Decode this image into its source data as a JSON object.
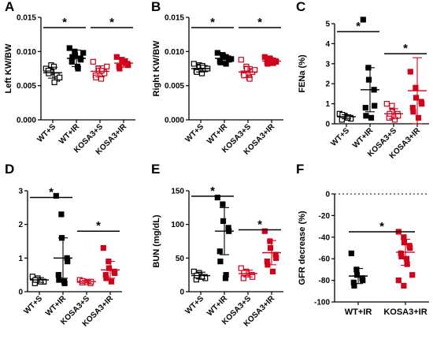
{
  "chart_data": [
    {
      "type": "dot",
      "panel": "A",
      "ylabel": "Left KW/BW",
      "categories": [
        "WT+S",
        "WT+IR",
        "KOSA3+S",
        "KOSA3+IR"
      ],
      "markers": [
        {
          "color": "#000000",
          "filled": false
        },
        {
          "color": "#000000",
          "filled": true
        },
        {
          "color": "#d0021b",
          "filled": false
        },
        {
          "color": "#d0021b",
          "filled": true
        }
      ],
      "points": [
        [
          0.0075,
          0.008,
          0.007,
          0.0065,
          0.006,
          0.0072,
          0.0068,
          0.0078,
          0.0055,
          0.0062
        ],
        [
          0.0105,
          0.01,
          0.0095,
          0.009,
          0.0088,
          0.0085,
          0.0092,
          0.0078,
          0.0075,
          0.0098
        ],
        [
          0.0085,
          0.0075,
          0.0072,
          0.007,
          0.0068,
          0.0065,
          0.0062,
          0.006,
          0.0072,
          0.0078
        ],
        [
          0.0092,
          0.0088,
          0.0085,
          0.0082,
          0.008,
          0.0078,
          0.0075,
          0.0086,
          0.0083
        ]
      ],
      "means": [
        0.0069,
        0.009,
        0.0071,
        0.0083
      ],
      "errors": [
        0.0008,
        0.0012,
        0.0008,
        0.0006
      ],
      "ylim": [
        0,
        0.015
      ],
      "yticks": [
        {
          "value": 0,
          "label": "0.000"
        },
        {
          "value": 0.005,
          "label": "0.005"
        },
        {
          "value": 0.01,
          "label": "0.010"
        },
        {
          "value": 0.015,
          "label": "0.015"
        }
      ],
      "annotations": [
        {
          "from": 0,
          "to": 1,
          "y": 0.0135,
          "text": "*"
        },
        {
          "from": 2,
          "to": 3,
          "y": 0.0135,
          "text": "*"
        }
      ]
    },
    {
      "type": "dot",
      "panel": "B",
      "ylabel": "Right KW/BW",
      "categories": [
        "WT+S",
        "WT+IR",
        "KOSA3+S",
        "KOSA3+IR"
      ],
      "markers": [
        {
          "color": "#000000",
          "filled": false
        },
        {
          "color": "#000000",
          "filled": true
        },
        {
          "color": "#d0021b",
          "filled": false
        },
        {
          "color": "#d0021b",
          "filled": true
        }
      ],
      "points": [
        [
          0.0082,
          0.008,
          0.0078,
          0.0076,
          0.0074,
          0.0072,
          0.007,
          0.0068,
          0.0079,
          0.0075
        ],
        [
          0.0098,
          0.0095,
          0.0093,
          0.009,
          0.0088,
          0.0086,
          0.0084,
          0.0092,
          0.0082,
          0.0089
        ],
        [
          0.0088,
          0.0078,
          0.0075,
          0.0072,
          0.007,
          0.0068,
          0.0065,
          0.0062,
          0.006,
          0.0073
        ],
        [
          0.0092,
          0.009,
          0.0088,
          0.0086,
          0.0085,
          0.0084,
          0.0082,
          0.0087,
          0.0083
        ]
      ],
      "means": [
        0.0075,
        0.009,
        0.007,
        0.0086
      ],
      "errors": [
        0.0005,
        0.0005,
        0.0008,
        0.0004
      ],
      "ylim": [
        0,
        0.015
      ],
      "yticks": [
        {
          "value": 0,
          "label": "0.000"
        },
        {
          "value": 0.005,
          "label": "0.005"
        },
        {
          "value": 0.01,
          "label": "0.010"
        },
        {
          "value": 0.015,
          "label": "0.015"
        }
      ],
      "annotations": [
        {
          "from": 0,
          "to": 1,
          "y": 0.0135,
          "text": "*"
        },
        {
          "from": 2,
          "to": 3,
          "y": 0.0135,
          "text": "*"
        }
      ]
    },
    {
      "type": "dot",
      "panel": "C",
      "ylabel": "FENa (%)",
      "categories": [
        "WT+S",
        "WT+IR",
        "KOSA3+S",
        "KOSA3+IR"
      ],
      "markers": [
        {
          "color": "#000000",
          "filled": false
        },
        {
          "color": "#000000",
          "filled": true
        },
        {
          "color": "#d0021b",
          "filled": false
        },
        {
          "color": "#d0021b",
          "filled": true
        }
      ],
      "points": [
        [
          0.5,
          0.4,
          0.35,
          0.3,
          0.25,
          0.2,
          0.45,
          0.3
        ],
        [
          5.2,
          2.8,
          2.2,
          1.7,
          0.9,
          0.8,
          0.4,
          0.3
        ],
        [
          1.0,
          0.9,
          0.6,
          0.5,
          0.4,
          0.3,
          0.5,
          0.2
        ],
        [
          2.6,
          1.8,
          1.3,
          1.1,
          1.0,
          0.8,
          0.6,
          0.3
        ]
      ],
      "means": [
        0.35,
        1.7,
        0.5,
        1.65
      ],
      "errors": [
        0.1,
        1.1,
        0.25,
        1.65
      ],
      "ylim": [
        0,
        5
      ],
      "yticks": [
        0,
        1,
        2,
        3,
        4,
        5
      ],
      "annotations": [
        {
          "from": 0,
          "to": 1,
          "y": 4.6,
          "text": "*"
        },
        {
          "from": 2,
          "to": 3,
          "y": 3.5,
          "text": "*"
        }
      ]
    },
    {
      "type": "dot",
      "panel": "D",
      "ylabel": "Serum Cr (mg/dL)",
      "categories": [
        "WT+S",
        "WT+IR",
        "KOSA3+S",
        "KOSA3+IR"
      ],
      "markers": [
        {
          "color": "#000000",
          "filled": false
        },
        {
          "color": "#000000",
          "filled": true
        },
        {
          "color": "#d0021b",
          "filled": false
        },
        {
          "color": "#d0021b",
          "filled": true
        }
      ],
      "points": [
        [
          0.45,
          0.4,
          0.35,
          0.3,
          0.3,
          0.25,
          0.35,
          0.3
        ],
        [
          2.85,
          2.3,
          1.6,
          1.0,
          0.9,
          0.5,
          0.35,
          0.3,
          0.25
        ],
        [
          0.35,
          0.3,
          0.28,
          0.25,
          0.3,
          0.27,
          0.32
        ],
        [
          1.3,
          0.9,
          0.7,
          0.6,
          0.55,
          0.5,
          0.4,
          0.3
        ]
      ],
      "means": [
        0.35,
        1.0,
        0.3,
        0.65
      ],
      "errors": [
        0.07,
        0.6,
        0.04,
        0.25
      ],
      "ylim": [
        0,
        3
      ],
      "yticks": [
        0,
        1,
        2,
        3
      ],
      "annotations": [
        {
          "from": 0,
          "to": 1,
          "y": 2.8,
          "text": "*"
        },
        {
          "from": 2,
          "to": 3,
          "y": 1.8,
          "text": "*"
        }
      ]
    },
    {
      "type": "dot",
      "panel": "E",
      "ylabel": "BUN (mg/dL)",
      "categories": [
        "WT+S",
        "WT+IR",
        "KOSA3+S",
        "KOSA3+IR"
      ],
      "markers": [
        {
          "color": "#000000",
          "filled": false
        },
        {
          "color": "#000000",
          "filled": true
        },
        {
          "color": "#d0021b",
          "filled": false
        },
        {
          "color": "#d0021b",
          "filled": true
        }
      ],
      "points": [
        [
          30,
          28,
          25,
          22,
          20,
          18,
          24,
          22
        ],
        [
          140,
          130,
          105,
          95,
          90,
          60,
          45,
          20,
          25
        ],
        [
          35,
          30,
          28,
          25,
          22,
          20,
          28
        ],
        [
          90,
          75,
          65,
          55,
          50,
          45,
          40,
          30
        ]
      ],
      "means": [
        24,
        90,
        27,
        58
      ],
      "errors": [
        5,
        35,
        5,
        18
      ],
      "ylim": [
        0,
        150
      ],
      "yticks": [
        0,
        50,
        100,
        150
      ],
      "annotations": [
        {
          "from": 0,
          "to": 1,
          "y": 142,
          "text": "*"
        },
        {
          "from": 2,
          "to": 3,
          "y": 92,
          "text": "*"
        }
      ]
    },
    {
      "type": "dot",
      "panel": "F",
      "ylabel": "GFR decrease  (%)",
      "categories": [
        "WT+IR",
        "KOSA3+IR"
      ],
      "markers": [
        {
          "color": "#000000",
          "filled": true
        },
        {
          "color": "#d0021b",
          "filled": true
        }
      ],
      "points": [
        [
          -55,
          -70,
          -75,
          -78,
          -80,
          -82,
          -85
        ],
        [
          -35,
          -40,
          -45,
          -48,
          -50,
          -55,
          -58,
          -60,
          -65,
          -75,
          -80,
          -85
        ]
      ],
      "means": [
        -76,
        -54
      ],
      "errors": [
        7,
        12
      ],
      "ylim": [
        -100,
        0
      ],
      "yticks": [
        -100,
        -80,
        -60,
        -40,
        -20,
        0
      ],
      "reference_line": 0,
      "annotations": [
        {
          "from": 0,
          "to": 1,
          "y": -35,
          "text": "*"
        }
      ]
    }
  ]
}
